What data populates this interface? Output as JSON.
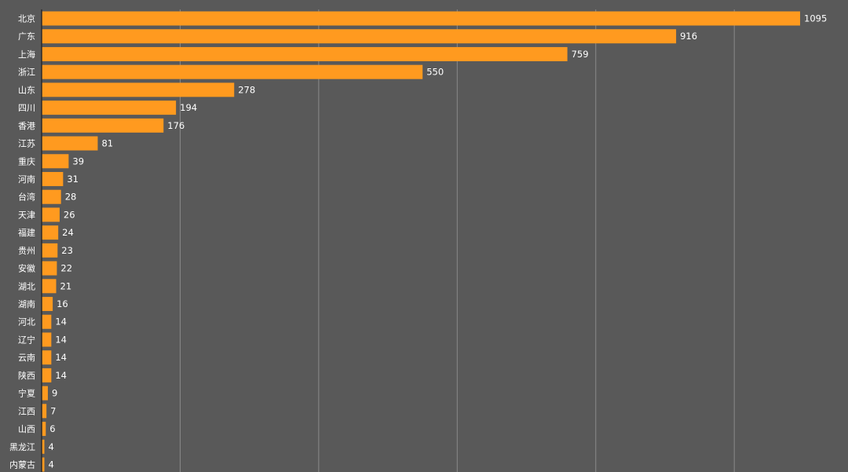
{
  "chart_data": {
    "type": "bar",
    "orientation": "horizontal",
    "categories": [
      "北京",
      "广东",
      "上海",
      "浙江",
      "山东",
      "四川",
      "香港",
      "江苏",
      "重庆",
      "河南",
      "台湾",
      "天津",
      "福建",
      "贵州",
      "安徽",
      "湖北",
      "湖南",
      "河北",
      "辽宁",
      "云南",
      "陕西",
      "宁夏",
      "江西",
      "山西",
      "黑龙江",
      "内蒙古"
    ],
    "values": [
      1095,
      916,
      759,
      550,
      278,
      194,
      176,
      81,
      39,
      31,
      28,
      26,
      24,
      23,
      22,
      21,
      16,
      14,
      14,
      14,
      14,
      9,
      7,
      6,
      4,
      4
    ],
    "xlim": [
      0,
      1200
    ],
    "grid": true,
    "data_labels": true,
    "colors": {
      "background": "#595959",
      "bar": "#ff9a1f",
      "gridline": "#8a8a8a",
      "axis": "#2b2b2b",
      "text": "#ffffff"
    }
  }
}
